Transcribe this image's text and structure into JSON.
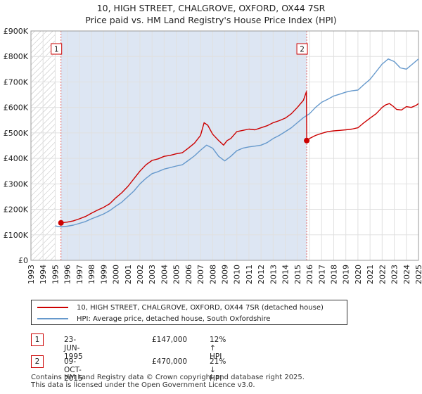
{
  "header": {
    "line1": "10, HIGH STREET, CHALGROVE, OXFORD, OX44 7SR",
    "line2": "Price paid vs. HM Land Registry's House Price Index (HPI)"
  },
  "colors": {
    "property": "#cc0000",
    "hpi": "#6699cc",
    "hatch": "#bbbbbb",
    "shade": "#dde6f3",
    "vline": "#e06666"
  },
  "chart_data": {
    "type": "line",
    "title": "10, HIGH STREET, CHALGROVE, OXFORD, OX44 7SR",
    "subtitle": "Price paid vs. HM Land Registry's House Price Index (HPI)",
    "xlim": [
      1993,
      2025
    ],
    "ylim": [
      0,
      900000
    ],
    "x_ticks": [
      1993,
      1994,
      1995,
      1996,
      1997,
      1998,
      1999,
      2000,
      2001,
      2002,
      2003,
      2004,
      2005,
      2006,
      2007,
      2008,
      2009,
      2010,
      2011,
      2012,
      2013,
      2014,
      2015,
      2016,
      2017,
      2018,
      2019,
      2020,
      2021,
      2022,
      2023,
      2024,
      2025
    ],
    "y_ticks": [
      {
        "value": 0,
        "label": "£0"
      },
      {
        "value": 100000,
        "label": "£100K"
      },
      {
        "value": 200000,
        "label": "£200K"
      },
      {
        "value": 300000,
        "label": "£300K"
      },
      {
        "value": 400000,
        "label": "£400K"
      },
      {
        "value": 500000,
        "label": "£500K"
      },
      {
        "value": 600000,
        "label": "£600K"
      },
      {
        "value": 700000,
        "label": "£700K"
      },
      {
        "value": 800000,
        "label": "£800K"
      },
      {
        "value": 900000,
        "label": "£900K"
      }
    ],
    "hatched_region": [
      1993,
      1995.0
    ],
    "shaded_region": [
      1995.48,
      2015.77
    ],
    "series": [
      {
        "name": "10, HIGH STREET, CHALGROVE, OXFORD, OX44 7SR (detached house)",
        "color": "#cc0000",
        "x": [
          1995.48,
          1996,
          1996.5,
          1997,
          1997.5,
          1998,
          1998.5,
          1999,
          1999.5,
          2000,
          2000.5,
          2001,
          2001.5,
          2002,
          2002.5,
          2003,
          2003.5,
          2004,
          2004.5,
          2005,
          2005.5,
          2006,
          2006.5,
          2007,
          2007.3,
          2007.6,
          2008,
          2008.5,
          2008.9,
          2009.2,
          2009.5,
          2010,
          2010.5,
          2011,
          2011.5,
          2012,
          2012.5,
          2013,
          2013.5,
          2014,
          2014.5,
          2015,
          2015.5,
          2015.75,
          2015.77,
          2016,
          2016.5,
          2017,
          2017.5,
          2018,
          2018.5,
          2019,
          2019.5,
          2020,
          2020.5,
          2021,
          2021.5,
          2022,
          2022.3,
          2022.6,
          2022.9,
          2023.2,
          2023.6,
          2024,
          2024.4,
          2024.8,
          2025
        ],
        "y": [
          147000,
          150000,
          155000,
          163000,
          172000,
          185000,
          197000,
          208000,
          222000,
          245000,
          265000,
          290000,
          320000,
          350000,
          375000,
          392000,
          398000,
          408000,
          412000,
          418000,
          422000,
          440000,
          460000,
          490000,
          540000,
          530000,
          495000,
          470000,
          452000,
          470000,
          478000,
          505000,
          510000,
          515000,
          512000,
          520000,
          528000,
          540000,
          548000,
          558000,
          575000,
          600000,
          628000,
          662000,
          470000,
          478000,
          490000,
          498000,
          505000,
          508000,
          510000,
          512000,
          515000,
          520000,
          540000,
          558000,
          575000,
          600000,
          610000,
          615000,
          605000,
          592000,
          590000,
          603000,
          600000,
          608000,
          615000
        ]
      },
      {
        "name": "HPI: Average price, detached house, South Oxfordshire",
        "color": "#6699cc",
        "x": [
          1995,
          1995.48,
          1996,
          1996.5,
          1997,
          1997.5,
          1998,
          1998.5,
          1999,
          1999.5,
          2000,
          2000.5,
          2001,
          2001.5,
          2002,
          2002.5,
          2003,
          2003.5,
          2004,
          2004.5,
          2005,
          2005.5,
          2006,
          2006.5,
          2007,
          2007.5,
          2008,
          2008.5,
          2009,
          2009.5,
          2010,
          2010.5,
          2011,
          2011.5,
          2012,
          2012.5,
          2013,
          2013.5,
          2014,
          2014.5,
          2015,
          2015.5,
          2016,
          2016.5,
          2017,
          2017.5,
          2018,
          2018.5,
          2019,
          2019.5,
          2020,
          2020.5,
          2021,
          2021.5,
          2022,
          2022.5,
          2023,
          2023.5,
          2024,
          2024.5,
          2025
        ],
        "y": [
          135000,
          131000,
          134000,
          138000,
          145000,
          152000,
          163000,
          172000,
          182000,
          195000,
          212000,
          228000,
          250000,
          272000,
          300000,
          322000,
          340000,
          348000,
          358000,
          364000,
          370000,
          375000,
          392000,
          410000,
          432000,
          452000,
          440000,
          408000,
          390000,
          408000,
          430000,
          440000,
          445000,
          448000,
          452000,
          462000,
          478000,
          490000,
          505000,
          520000,
          540000,
          560000,
          575000,
          600000,
          620000,
          632000,
          645000,
          652000,
          660000,
          665000,
          668000,
          690000,
          710000,
          740000,
          770000,
          790000,
          780000,
          755000,
          750000,
          770000,
          790000
        ]
      }
    ],
    "sales": [
      {
        "marker": "1",
        "x": 1995.48,
        "y": 147000
      },
      {
        "marker": "2",
        "x": 2015.77,
        "y": 470000
      }
    ]
  },
  "legend": {
    "items": [
      {
        "label": "10, HIGH STREET, CHALGROVE, OXFORD, OX44 7SR (detached house)",
        "color": "#cc0000"
      },
      {
        "label": "HPI: Average price, detached house, South Oxfordshire",
        "color": "#6699cc"
      }
    ]
  },
  "transactions": [
    {
      "marker": "1",
      "date": "23-JUN-1995",
      "price": "£147,000",
      "hpi": "12% ↑ HPI"
    },
    {
      "marker": "2",
      "date": "09-OCT-2015",
      "price": "£470,000",
      "hpi": "21% ↓ HPI"
    }
  ],
  "footer": {
    "line1": "Contains HM Land Registry data © Crown copyright and database right 2025.",
    "line2": "This data is licensed under the Open Government Licence v3.0."
  }
}
